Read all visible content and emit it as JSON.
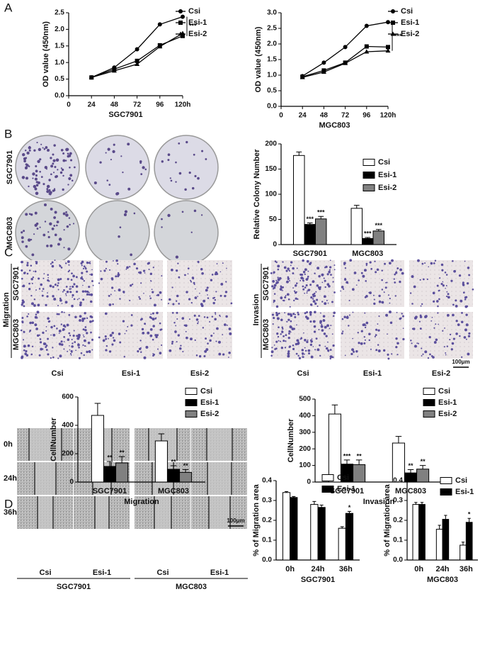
{
  "panel_letters": [
    "A",
    "B",
    "C",
    "D"
  ],
  "colony": {
    "rows": [
      "SGC7901",
      "MGC803"
    ],
    "columns": [
      "Csi",
      "Esi-1",
      "Esi-2"
    ]
  },
  "transwell": [
    {
      "title": "Migration",
      "rows": [
        "SGC7901",
        "MGC803"
      ],
      "columns": [
        "Csi",
        "Esi-1",
        "Esi-2"
      ]
    },
    {
      "title": "Invasion",
      "rows": [
        "SGC7901",
        "MGC803"
      ],
      "columns": [
        "Csi",
        "Esi-1",
        "Esi-2"
      ],
      "scale_bar": "100μm"
    }
  ],
  "wound": {
    "rows": [
      "0h",
      "24h",
      "36h"
    ],
    "groups": [
      {
        "name": "SGC7901",
        "columns": [
          "Csi",
          "Esi-1"
        ]
      },
      {
        "name": "MGC803",
        "columns": [
          "Csi",
          "Esi-1"
        ]
      }
    ],
    "scale_bar": "100μm"
  },
  "chart_data": [
    {
      "type": "line",
      "ylabel": "OD value (450nm)",
      "xlabel": "SGC7901",
      "annotation": "***",
      "x": [
        24,
        48,
        72,
        96,
        120
      ],
      "xlim": [
        0,
        120
      ],
      "xticks": [
        0,
        24,
        48,
        72,
        96,
        {
          "value": 120,
          "label": "120h"
        }
      ],
      "ylim": [
        0,
        2.5
      ],
      "yticks": [
        {
          "value": 0,
          "label": "0.0"
        },
        0.5,
        {
          "value": 1,
          "label": "1.0"
        },
        1.5,
        {
          "value": 2,
          "label": "2.0"
        },
        2.5
      ],
      "series": [
        {
          "name": "Csi",
          "color": "#000000",
          "marker": "circle",
          "values": [
            0.55,
            0.85,
            1.4,
            2.15,
            2.38
          ]
        },
        {
          "name": "Esi-1",
          "color": "#000000",
          "marker": "square",
          "values": [
            0.55,
            0.8,
            1.05,
            1.52,
            1.8
          ]
        },
        {
          "name": "Esi-2",
          "color": "#000000",
          "marker": "triangle",
          "values": [
            0.55,
            0.75,
            0.95,
            1.48,
            1.88
          ]
        }
      ]
    },
    {
      "type": "line",
      "ylabel": "OD value (450nm)",
      "xlabel": "MGC803",
      "annotation": "***",
      "x": [
        24,
        48,
        72,
        96,
        120
      ],
      "xlim": [
        0,
        120
      ],
      "xticks": [
        0,
        24,
        48,
        72,
        96,
        {
          "value": 120,
          "label": "120h"
        }
      ],
      "ylim": [
        0,
        3
      ],
      "yticks": [
        {
          "value": 0,
          "label": "0.0"
        },
        0.5,
        {
          "value": 1,
          "label": "1.0"
        },
        1.5,
        {
          "value": 2,
          "label": "2.0"
        },
        2.5,
        {
          "value": 3,
          "label": "3.0"
        }
      ],
      "series": [
        {
          "name": "Csi",
          "color": "#000000",
          "marker": "circle",
          "values": [
            0.97,
            1.4,
            1.9,
            2.58,
            2.7
          ]
        },
        {
          "name": "Esi-1",
          "color": "#000000",
          "marker": "square",
          "values": [
            0.95,
            1.15,
            1.4,
            1.92,
            1.9
          ]
        },
        {
          "name": "Esi-2",
          "color": "#000000",
          "marker": "triangle",
          "values": [
            0.93,
            1.1,
            1.38,
            1.75,
            1.78
          ]
        }
      ]
    },
    {
      "type": "bar",
      "ylabel": "Relative Colony Number",
      "categories": [
        "SGC7901",
        "MGC803"
      ],
      "ylim": [
        0,
        200
      ],
      "yticks": [
        0,
        50,
        100,
        150,
        200
      ],
      "series": [
        {
          "name": "Csi",
          "color": "#ffffff",
          "values": [
            177,
            72
          ],
          "errors": [
            7,
            6
          ]
        },
        {
          "name": "Esi-1",
          "color": "#000000",
          "values": [
            40,
            12
          ],
          "errors": [
            3,
            2
          ],
          "significance": [
            "***",
            "***"
          ]
        },
        {
          "name": "Esi-2",
          "color": "#808080",
          "values": [
            51,
            27
          ],
          "errors": [
            5,
            3
          ],
          "significance": [
            "***",
            "***"
          ]
        }
      ]
    },
    {
      "type": "bar",
      "ylabel": "CellNumber",
      "xlabel": "Migration",
      "categories": [
        "SGC7901",
        "MGC803"
      ],
      "ylim": [
        0,
        600
      ],
      "yticks": [
        0,
        200,
        400,
        600
      ],
      "series": [
        {
          "name": "Csi",
          "color": "#ffffff",
          "values": [
            470,
            290
          ],
          "errors": [
            85,
            50
          ]
        },
        {
          "name": "Esi-1",
          "color": "#000000",
          "values": [
            110,
            90
          ],
          "errors": [
            35,
            25
          ],
          "significance": [
            "**",
            "**"
          ]
        },
        {
          "name": "Esi-2",
          "color": "#808080",
          "values": [
            135,
            68
          ],
          "errors": [
            45,
            20
          ],
          "significance": [
            "**",
            "**"
          ]
        }
      ]
    },
    {
      "type": "bar",
      "ylabel": "CellNumber",
      "xlabel": "Invasion",
      "categories": [
        "SGC7901",
        "MGC803"
      ],
      "ylim": [
        0,
        500
      ],
      "yticks": [
        0,
        100,
        200,
        300,
        400,
        500
      ],
      "series": [
        {
          "name": "Csi",
          "color": "#ffffff",
          "values": [
            410,
            235
          ],
          "errors": [
            55,
            40
          ]
        },
        {
          "name": "Esi-1",
          "color": "#000000",
          "values": [
            108,
            55
          ],
          "errors": [
            25,
            20
          ],
          "significance": [
            "***",
            "**"
          ]
        },
        {
          "name": "Esi-2",
          "color": "#808080",
          "values": [
            105,
            78
          ],
          "errors": [
            28,
            22
          ],
          "significance": [
            "**",
            "**"
          ]
        }
      ]
    },
    {
      "type": "bar",
      "ylabel": "% of Migration area",
      "xlabel": "SGC7901",
      "categories": [
        "0h",
        "24h",
        "36h"
      ],
      "ylim": [
        0,
        0.4
      ],
      "yticks": [
        {
          "value": 0,
          "label": "0.0"
        },
        0.1,
        0.2,
        0.3,
        0.4
      ],
      "series": [
        {
          "name": "Csi",
          "color": "#ffffff",
          "values": [
            0.34,
            0.28,
            0.16
          ],
          "errors": [
            0.005,
            0.015,
            0.008
          ]
        },
        {
          "name": "Esi-1",
          "color": "#000000",
          "values": [
            0.315,
            0.265,
            0.235
          ],
          "errors": [
            0.005,
            0.012,
            0.01
          ],
          "significance": [
            null,
            null,
            "*"
          ]
        }
      ]
    },
    {
      "type": "bar",
      "ylabel": "% of Migration area",
      "xlabel": "MGC803",
      "categories": [
        "0h",
        "24h",
        "36h"
      ],
      "ylim": [
        0,
        0.4
      ],
      "yticks": [
        {
          "value": 0,
          "label": "0.0"
        },
        0.1,
        0.2,
        0.3,
        0.4
      ],
      "series": [
        {
          "name": "Csi",
          "color": "#ffffff",
          "values": [
            0.28,
            0.155,
            0.075
          ],
          "errors": [
            0.01,
            0.02,
            0.015
          ]
        },
        {
          "name": "Esi-1",
          "color": "#000000",
          "values": [
            0.28,
            0.205,
            0.19
          ],
          "errors": [
            0.01,
            0.02,
            0.02
          ],
          "significance": [
            null,
            null,
            "*"
          ]
        }
      ]
    }
  ]
}
